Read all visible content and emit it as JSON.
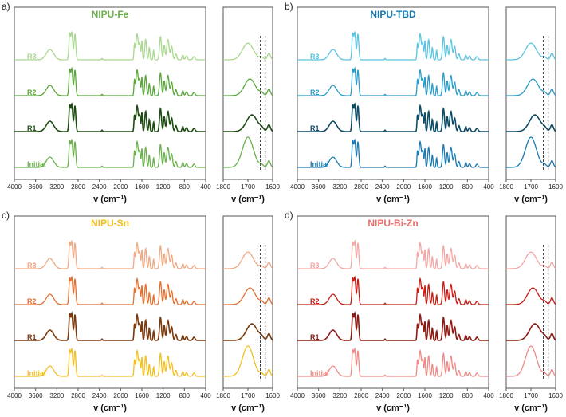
{
  "chart_data": [
    {
      "type": "line",
      "panel_label": "a)",
      "title": "NIPU-Fe",
      "title_color": "#6ab04c",
      "xlabel": "v (cm⁻¹)",
      "xlim": [
        4000,
        400
      ],
      "xticks": [
        "4000",
        "3600",
        "3200",
        "2800",
        "2400",
        "2000",
        "1600",
        "1200",
        "800",
        "400"
      ],
      "series": [
        {
          "name": "R3",
          "color": "#a9d88f"
        },
        {
          "name": "R2",
          "color": "#5aa83c"
        },
        {
          "name": "R1",
          "color": "#1e4d14"
        },
        {
          "name": "Initial",
          "color": "#6ab04c"
        }
      ],
      "inset": {
        "xlabel": "v (cm⁻¹)",
        "xlim": [
          1800,
          1600
        ],
        "xticks": [
          "1800",
          "1700",
          "1600"
        ],
        "dashed_lines": [
          1650,
          1630
        ]
      }
    },
    {
      "type": "line",
      "panel_label": "b)",
      "title": "NIPU-TBD",
      "title_color": "#1a7ab0",
      "xlabel": "v (cm⁻¹)",
      "xlim": [
        4000,
        400
      ],
      "xticks": [
        "4000",
        "3600",
        "3200",
        "2800",
        "2400",
        "2000",
        "1600",
        "1200",
        "800",
        "400"
      ],
      "series": [
        {
          "name": "R3",
          "color": "#5bc4e0"
        },
        {
          "name": "R2",
          "color": "#2a9cc8"
        },
        {
          "name": "R1",
          "color": "#0d4c66"
        },
        {
          "name": "Initial",
          "color": "#1a7ab0"
        }
      ],
      "inset": {
        "xlabel": "v (cm⁻¹)",
        "xlim": [
          1800,
          1600
        ],
        "xticks": [
          "1800",
          "1700",
          "1600"
        ],
        "dashed_lines": [
          1650,
          1630
        ]
      }
    },
    {
      "type": "line",
      "panel_label": "c)",
      "title": "NIPU-Sn",
      "title_color": "#f2c01e",
      "xlabel": "v (cm⁻¹)",
      "xlim": [
        4000,
        400
      ],
      "xticks": [
        "4000",
        "3600",
        "3200",
        "2800",
        "2400",
        "2000",
        "1600",
        "1200",
        "800",
        "400"
      ],
      "series": [
        {
          "name": "R3",
          "color": "#f0a983"
        },
        {
          "name": "R2",
          "color": "#e56f2e"
        },
        {
          "name": "R1",
          "color": "#7a3a0e"
        },
        {
          "name": "Initial",
          "color": "#f2c01e"
        }
      ],
      "inset": {
        "xlabel": "v (cm⁻¹)",
        "xlim": [
          1800,
          1600
        ],
        "xticks": [
          "1800",
          "1700",
          "1600"
        ],
        "dashed_lines": [
          1650,
          1630
        ]
      }
    },
    {
      "type": "line",
      "panel_label": "d)",
      "title": "NIPU-Bi-Zn",
      "title_color": "#e8706e",
      "xlabel": "v (cm⁻¹)",
      "xlim": [
        4000,
        400
      ],
      "xticks": [
        "4000",
        "3600",
        "3200",
        "2800",
        "2400",
        "2000",
        "1600",
        "1200",
        "800",
        "400"
      ],
      "series": [
        {
          "name": "R3",
          "color": "#f2a7a5"
        },
        {
          "name": "R2",
          "color": "#c81a12"
        },
        {
          "name": "R1",
          "color": "#8c1a14"
        },
        {
          "name": "Initial",
          "color": "#ec8a86"
        }
      ],
      "inset": {
        "xlabel": "v (cm⁻¹)",
        "xlim": [
          1800,
          1600
        ],
        "xticks": [
          "1800",
          "1700",
          "1600"
        ],
        "dashed_lines": [
          1650,
          1630
        ]
      }
    }
  ]
}
